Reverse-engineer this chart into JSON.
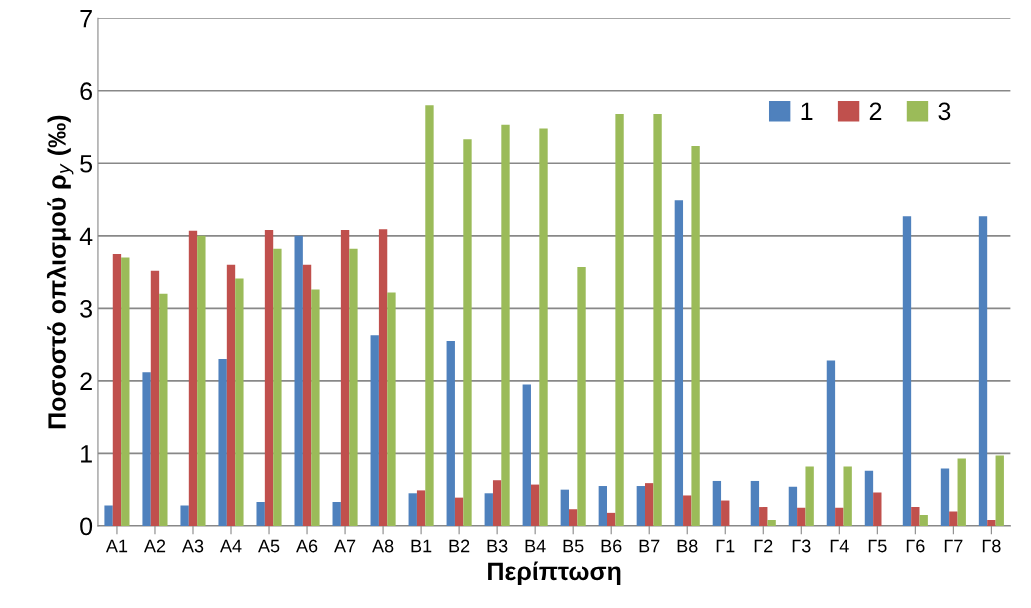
{
  "chart_data": {
    "type": "bar",
    "xlabel": "Περίπτωση",
    "ylabel": "Ποσοστό οπλισμού ρ$_{y}$ (‰)",
    "categories": [
      "Α1",
      "Α2",
      "Α3",
      "Α4",
      "Α5",
      "Α6",
      "Α7",
      "Α8",
      "Β1",
      "Β2",
      "Β3",
      "Β4",
      "Β5",
      "Β6",
      "Β7",
      "Β8",
      "Γ1",
      "Γ2",
      "Γ3",
      "Γ4",
      "Γ5",
      "Γ6",
      "Γ7",
      "Γ8"
    ],
    "series": [
      {
        "name": "1",
        "color": "#4f81bd",
        "values": [
          0.28,
          2.12,
          0.28,
          2.3,
          0.33,
          4.0,
          0.33,
          2.63,
          0.45,
          2.55,
          0.45,
          1.95,
          0.5,
          0.55,
          0.55,
          4.49,
          0.62,
          0.62,
          0.54,
          2.28,
          0.76,
          4.27,
          0.79,
          4.27
        ]
      },
      {
        "name": "2",
        "color": "#c0504d",
        "values": [
          3.75,
          3.52,
          4.07,
          3.6,
          4.08,
          3.6,
          4.08,
          4.09,
          0.49,
          0.39,
          0.63,
          0.57,
          0.23,
          0.18,
          0.59,
          0.42,
          0.35,
          0.26,
          0.25,
          0.25,
          0.46,
          0.26,
          0.2,
          0.08
        ]
      },
      {
        "name": "3",
        "color": "#9bbb59",
        "values": [
          3.7,
          3.2,
          4.0,
          3.41,
          3.82,
          3.26,
          3.82,
          3.22,
          5.8,
          5.33,
          5.53,
          5.48,
          3.57,
          5.68,
          5.68,
          5.24,
          0,
          0.08,
          0.82,
          0.82,
          0,
          0.15,
          0.93,
          0.97
        ]
      }
    ],
    "ylim": [
      0,
      7
    ],
    "yticks": [
      0,
      1,
      2,
      3,
      4,
      5,
      6,
      7
    ],
    "grid": "y",
    "legend": "top right"
  }
}
